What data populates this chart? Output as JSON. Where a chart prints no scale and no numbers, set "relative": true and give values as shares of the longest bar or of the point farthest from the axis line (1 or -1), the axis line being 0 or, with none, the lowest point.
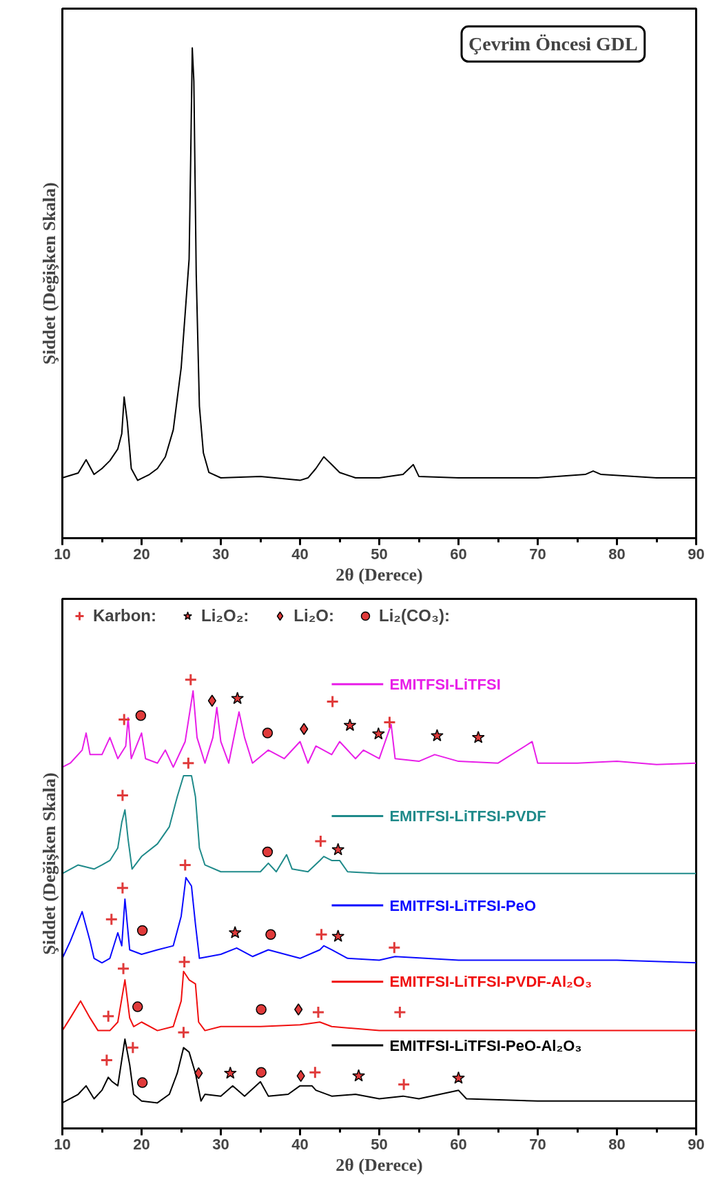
{
  "chart_data": [
    {
      "type": "line",
      "relative": true,
      "xlabel": "2θ (Derece)",
      "ylabel": "Şiddet (Değişken Skala)",
      "annotations": [
        "Çevrim Öncesi GDL"
      ],
      "xlim": [
        10,
        90
      ],
      "xticks": [
        10,
        {
          "value": 15,
          "label": null
        },
        20,
        {
          "value": 25,
          "label": null
        },
        30,
        {
          "value": 35,
          "label": null
        },
        40,
        {
          "value": 45,
          "label": null
        },
        50,
        {
          "value": 55,
          "label": null
        },
        60,
        {
          "value": 65,
          "label": null
        },
        70,
        {
          "value": 75,
          "label": null
        },
        80,
        {
          "value": 85,
          "label": null
        },
        90
      ],
      "series": [
        {
          "color": "#000000",
          "x": [
            10,
            12,
            13,
            14,
            15,
            16,
            17,
            17.5,
            17.8,
            18.2,
            18.7,
            19.5,
            21,
            22,
            23,
            24,
            25,
            25.5,
            26,
            26.2,
            26.4,
            26.6,
            26.9,
            27.3,
            27.8,
            28.5,
            30,
            35,
            40,
            41,
            42,
            43,
            43.5,
            44,
            45,
            47,
            50,
            53,
            54.3,
            55,
            60,
            70,
            76,
            77,
            78,
            85,
            90
          ],
          "values": [
            0.123,
            0.133,
            0.16,
            0.13,
            0.142,
            0.158,
            0.182,
            0.213,
            0.288,
            0.237,
            0.142,
            0.118,
            0.13,
            0.142,
            0.166,
            0.221,
            0.348,
            0.458,
            0.569,
            0.774,
            1.0,
            0.932,
            0.537,
            0.269,
            0.174,
            0.134,
            0.123,
            0.126,
            0.118,
            0.123,
            0.142,
            0.166,
            0.158,
            0.15,
            0.134,
            0.123,
            0.123,
            0.13,
            0.15,
            0.126,
            0.123,
            0.123,
            0.13,
            0.137,
            0.13,
            0.123,
            0.123
          ]
        }
      ]
    },
    {
      "type": "line",
      "relative": true,
      "xlabel": "2θ (Derece)",
      "ylabel": "Şiddet (Değişken Skala)",
      "legend": "top",
      "xlim": [
        10,
        90
      ],
      "xticks": [
        10,
        {
          "value": 15,
          "label": null
        },
        20,
        {
          "value": 25,
          "label": null
        },
        30,
        {
          "value": 35,
          "label": null
        },
        40,
        {
          "value": 45,
          "label": null
        },
        50,
        {
          "value": 55,
          "label": null
        },
        60,
        {
          "value": 65,
          "label": null
        },
        70,
        {
          "value": 75,
          "label": null
        },
        80,
        {
          "value": 85,
          "label": null
        },
        90
      ],
      "series": [
        {
          "name": "EMITFSI-LiTFSI",
          "color": "#e81ee8",
          "x": [
            10,
            11,
            12.5,
            13,
            13.5,
            15,
            16,
            17,
            18,
            18.3,
            18.7,
            20,
            20.5,
            22,
            23,
            24,
            25.5,
            26.5,
            27,
            28,
            29,
            29.5,
            30,
            31,
            32.3,
            33,
            34,
            36,
            38,
            40,
            41,
            42,
            44,
            45,
            47,
            48,
            50,
            51.5,
            52,
            55,
            57,
            60,
            65,
            69.3,
            70,
            75,
            80,
            85,
            90
          ],
          "values": [
            0.805,
            0.814,
            0.843,
            0.881,
            0.833,
            0.833,
            0.871,
            0.824,
            0.852,
            0.915,
            0.824,
            0.881,
            0.824,
            0.814,
            0.843,
            0.805,
            0.862,
            0.975,
            0.871,
            0.814,
            0.871,
            0.938,
            0.862,
            0.814,
            0.928,
            0.871,
            0.814,
            0.843,
            0.824,
            0.862,
            0.814,
            0.852,
            0.833,
            0.862,
            0.824,
            0.843,
            0.824,
            0.9,
            0.824,
            0.818,
            0.833,
            0.818,
            0.814,
            0.862,
            0.814,
            0.814,
            0.818,
            0.811,
            0.814
          ]
        },
        {
          "name": "EMITFSI-LiTFSI-PVDF",
          "color": "#1f8a8a",
          "x": [
            10,
            12,
            14,
            15,
            16,
            17,
            17.5,
            17.9,
            18.3,
            18.8,
            20,
            22,
            23.5,
            24.5,
            25.3,
            26.3,
            26.8,
            27.3,
            28,
            30,
            35,
            36,
            37,
            38.3,
            39,
            41,
            42.5,
            43,
            44,
            45,
            46,
            50,
            60,
            70,
            80,
            90
          ],
          "values": [
            0.568,
            0.587,
            0.578,
            0.587,
            0.597,
            0.625,
            0.682,
            0.71,
            0.644,
            0.578,
            0.606,
            0.634,
            0.672,
            0.739,
            0.786,
            0.786,
            0.739,
            0.625,
            0.587,
            0.572,
            0.572,
            0.591,
            0.572,
            0.61,
            0.578,
            0.572,
            0.597,
            0.606,
            0.597,
            0.597,
            0.572,
            0.568,
            0.568,
            0.568,
            0.568,
            0.568
          ]
        },
        {
          "name": "EMITFSI-LiTFSI-PeO",
          "color": "#0a0aff",
          "x": [
            10,
            11,
            12.5,
            13.5,
            14,
            15,
            16,
            17,
            17.5,
            17.9,
            18.5,
            20,
            22,
            24,
            25,
            25.6,
            26.3,
            26.8,
            27.3,
            30,
            32,
            34,
            36,
            40,
            42.5,
            43,
            44,
            46,
            50,
            52,
            60,
            70,
            80,
            90
          ],
          "values": [
            0.379,
            0.417,
            0.483,
            0.417,
            0.379,
            0.369,
            0.379,
            0.436,
            0.407,
            0.511,
            0.398,
            0.388,
            0.398,
            0.407,
            0.473,
            0.559,
            0.54,
            0.455,
            0.379,
            0.388,
            0.402,
            0.383,
            0.398,
            0.379,
            0.398,
            0.407,
            0.398,
            0.379,
            0.375,
            0.383,
            0.375,
            0.375,
            0.375,
            0.369
          ]
        },
        {
          "name": "EMITFSI-LiTFSI-PVDF-Al₂O₃",
          "color": "#f01010",
          "x": [
            10,
            11,
            12.3,
            13.5,
            14.5,
            16,
            17,
            17.9,
            18.5,
            19,
            20,
            22,
            24,
            25,
            25.3,
            26,
            26.8,
            27.2,
            28,
            30,
            35,
            40,
            42.5,
            44,
            50,
            60,
            70,
            80,
            90
          ],
          "values": [
            0.218,
            0.246,
            0.284,
            0.246,
            0.218,
            0.218,
            0.237,
            0.331,
            0.246,
            0.227,
            0.237,
            0.218,
            0.227,
            0.284,
            0.35,
            0.331,
            0.322,
            0.237,
            0.218,
            0.227,
            0.227,
            0.231,
            0.237,
            0.227,
            0.218,
            0.218,
            0.218,
            0.218,
            0.218
          ]
        },
        {
          "name": "EMITFSI-LiTFSI-PeO-Al₂O₃",
          "color": "#000000",
          "x": [
            10,
            12,
            13,
            14,
            15,
            15.8,
            16.3,
            17,
            17.9,
            18.5,
            19,
            20,
            22,
            23.5,
            24.5,
            25.3,
            26,
            26.8,
            27.5,
            28,
            30,
            31.5,
            33,
            35,
            36,
            38.5,
            40,
            41.5,
            42,
            44,
            47,
            50,
            53,
            55,
            60,
            61,
            70,
            80,
            90
          ],
          "values": [
            0.057,
            0.076,
            0.095,
            0.066,
            0.085,
            0.114,
            0.104,
            0.095,
            0.199,
            0.142,
            0.076,
            0.061,
            0.057,
            0.076,
            0.123,
            0.18,
            0.17,
            0.123,
            0.061,
            0.076,
            0.072,
            0.095,
            0.072,
            0.104,
            0.072,
            0.076,
            0.095,
            0.095,
            0.085,
            0.072,
            0.076,
            0.066,
            0.072,
            0.066,
            0.085,
            0.066,
            0.061,
            0.061,
            0.061
          ]
        },
        {
          "name": "Karbon:",
          "type": "scatter",
          "marker": "cross",
          "color": "#e03a3a",
          "x": [
            17.8,
            26.2,
            44.1,
            51.3,
            17.6,
            25.9,
            42.6,
            16.2,
            17.6,
            25.5,
            42.7,
            51.9,
            15.8,
            17.7,
            25.4,
            42.3,
            52.6,
            15.6,
            18.9,
            25.3,
            41.9,
            53.1
          ],
          "values": [
            0.911,
            1.0,
            0.951,
            0.905,
            0.742,
            0.814,
            0.64,
            0.466,
            0.536,
            0.587,
            0.432,
            0.403,
            0.25,
            0.356,
            0.371,
            0.259,
            0.259,
            0.152,
            0.18,
            0.214,
            0.125,
            0.098
          ]
        },
        {
          "name": "Li₂O₂:",
          "type": "scatter",
          "marker": "star",
          "color": "#e03a3a",
          "x": [
            32.1,
            46.3,
            49.9,
            57.3,
            62.5,
            44.8,
            31.8,
            44.8,
            31.2,
            47.4,
            60.0
          ],
          "values": [
            0.958,
            0.898,
            0.879,
            0.875,
            0.871,
            0.621,
            0.436,
            0.428,
            0.123,
            0.117,
            0.112
          ]
        },
        {
          "name": "Li₂O:",
          "type": "scatter",
          "marker": "diamond",
          "color": "#e03a3a",
          "x": [
            28.9,
            40.5,
            39.8,
            27.2,
            40.1
          ],
          "values": [
            0.953,
            0.89,
            0.265,
            0.123,
            0.117
          ]
        },
        {
          "name": "Li₂(CO₃):",
          "type": "scatter",
          "marker": "circle",
          "color": "#e03a3a",
          "x": [
            19.9,
            35.9,
            35.9,
            20.1,
            36.3,
            19.5,
            35.1,
            20.1,
            35.1
          ],
          "values": [
            0.92,
            0.881,
            0.616,
            0.441,
            0.432,
            0.271,
            0.265,
            0.102,
            0.125
          ]
        }
      ]
    }
  ]
}
